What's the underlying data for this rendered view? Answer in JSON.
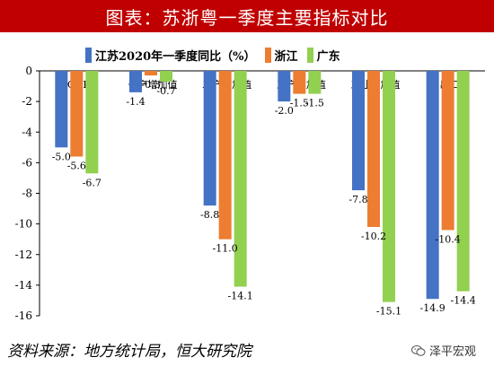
{
  "title": "图表：苏浙粤一季度主要指标对比",
  "source": "资料来源：地方统计局，恒大研究院",
  "watermark": "泽平宏观",
  "chart_data": {
    "type": "bar",
    "categories": [
      "GDP",
      "一产增加值",
      "二产增加值",
      "三产增加值",
      "工业增加值",
      "出口"
    ],
    "series": [
      {
        "name": "江苏2020年一季度同比（%）",
        "color": "#4472C4",
        "values": [
          -5.0,
          -1.4,
          -8.8,
          -2.0,
          -7.8,
          -14.9
        ]
      },
      {
        "name": "浙江",
        "color": "#ED7D31",
        "values": [
          -5.6,
          -0.3,
          -11.0,
          -1.5,
          -10.2,
          -10.4
        ]
      },
      {
        "name": "广东",
        "color": "#92D050",
        "values": [
          -6.7,
          -0.7,
          -14.1,
          -1.5,
          -15.1,
          -14.4
        ]
      }
    ],
    "ylim": [
      -16,
      0
    ],
    "yticks": [
      0,
      -2,
      -4,
      -6,
      -8,
      -10,
      -12,
      -14,
      -16
    ],
    "legend_position": "top",
    "grid": false
  }
}
